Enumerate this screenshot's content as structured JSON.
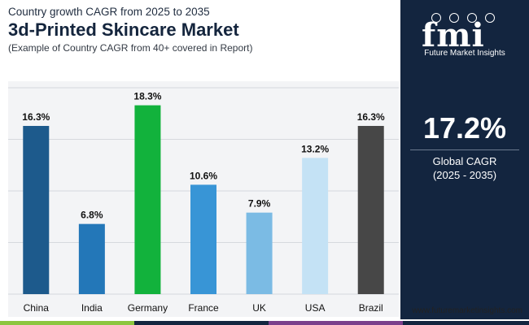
{
  "header": {
    "supertitle": "Country growth CAGR from 2025 to 2035",
    "title": "3d-Printed Skincare Market",
    "subtitle": "(Example of Country CAGR from 40+ covered in Report)"
  },
  "chart_data": {
    "type": "bar",
    "categories": [
      "China",
      "India",
      "Germany",
      "France",
      "UK",
      "USA",
      "Brazil"
    ],
    "values": [
      16.3,
      6.8,
      18.3,
      10.6,
      7.9,
      13.2,
      16.3
    ],
    "data_labels": [
      "16.3%",
      "6.8%",
      "18.3%",
      "10.6%",
      "7.9%",
      "13.2%",
      "16.3%"
    ],
    "colors": [
      "#1d5a8c",
      "#2377b8",
      "#12b23c",
      "#3895d6",
      "#7bbbe4",
      "#c4e2f5",
      "#474747"
    ],
    "unit": "%",
    "ylim": [
      0,
      20
    ],
    "grid": true,
    "legend": "none"
  },
  "side_panel": {
    "logo_mark": "fmi",
    "logo_text": "Future Market Insights",
    "stat_value": "17.2%",
    "stat_label": "Global CAGR",
    "stat_period": "(2025 - 2035)"
  },
  "footer": {
    "website": "www.futuremarketinsights.com"
  },
  "colors": {
    "panel": "#13253f",
    "plot_background": "#f3f4f6",
    "gridline": "#d6d9de",
    "bottom_bar": [
      "#8cc63e",
      "#13253f",
      "#7b3f8c",
      "#13253f"
    ]
  }
}
